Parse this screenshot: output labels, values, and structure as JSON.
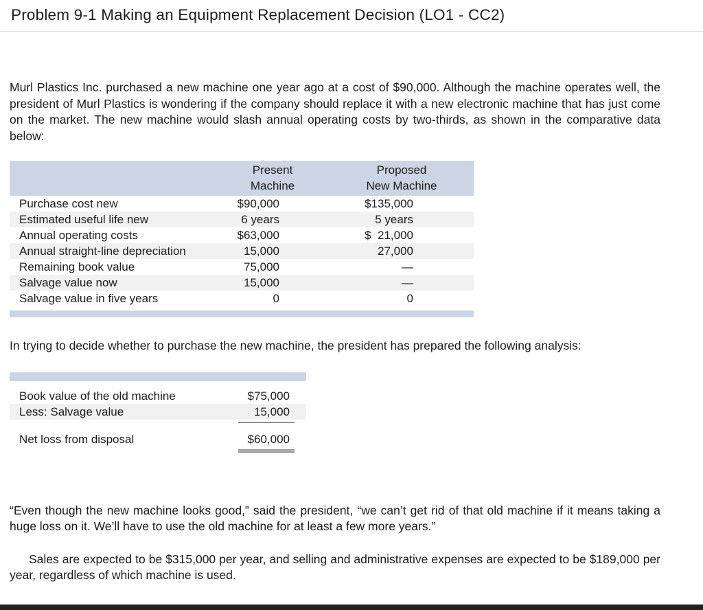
{
  "page": {
    "title": "Problem 9-1 Making an Equipment Replacement Decision (LO1 - CC2)",
    "intro": "Murl Plastics Inc. purchased a new machine one year ago at a cost of $90,000. Although the machine operates well, the president of Murl Plastics is wondering if the company should replace it with a new electronic machine that has just come on the market. The new machine would slash annual operating costs by two-thirds, as shown in the comparative data below:",
    "analysis_intro": "In trying to decide whether to purchase the new machine, the president has prepared the following analysis:",
    "quote_paragraph": "“Even though the new machine looks good,” said the president, “we can’t get rid of that old machine if it means taking a huge loss on it. We’ll have to use the old machine for at least a few more years.”",
    "sales_paragraph": "Sales are expected to be $315,000 per year, and selling and administrative expenses are expected to be $189,000 per year, regardless of which machine is used."
  },
  "comparison_table": {
    "header": {
      "present": [
        "Present",
        "Machine"
      ],
      "proposed": [
        "Proposed",
        "New Machine"
      ]
    },
    "rows": [
      {
        "label": "Purchase cost new",
        "present": "$90,000",
        "proposed": "$135,000"
      },
      {
        "label": "Estimated useful life new",
        "present": "6 years",
        "proposed": "5 years"
      },
      {
        "label": "Annual operating costs",
        "present": "$63,000",
        "proposed": "$  21,000"
      },
      {
        "label": "Annual straight-line depreciation",
        "present": "15,000",
        "proposed": "27,000"
      },
      {
        "label": "Remaining book value",
        "present": "75,000",
        "proposed": "—"
      },
      {
        "label": "Salvage value now",
        "present": "15,000",
        "proposed": "—"
      },
      {
        "label": "Salvage value in five years",
        "present": "0",
        "proposed": "0"
      }
    ]
  },
  "analysis_table": {
    "rows": [
      {
        "label": "Book value of the old machine",
        "value": "$75,000"
      },
      {
        "label": "Less: Salvage value",
        "value": "15,000"
      },
      {
        "label": "Net loss from disposal",
        "value": "$60,000"
      }
    ]
  },
  "colors": {
    "table_band": "#ccd5e5",
    "row_stripe": "#f1f1f1",
    "rule_gray": "#8f8f8f",
    "bottom_bar": "#212121"
  }
}
